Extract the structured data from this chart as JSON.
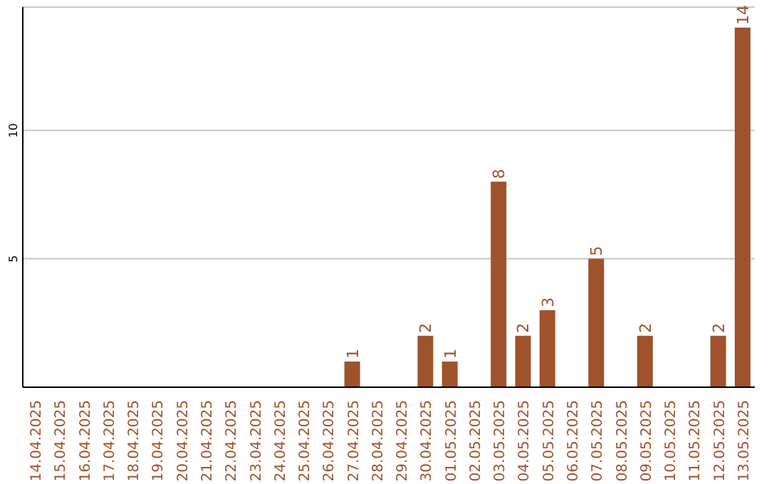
{
  "chart_data": {
    "type": "bar",
    "categories": [
      "14.04.2025",
      "15.04.2025",
      "16.04.2025",
      "17.04.2025",
      "18.04.2025",
      "19.04.2025",
      "20.04.2025",
      "21.04.2025",
      "22.04.2025",
      "23.04.2025",
      "24.04.2025",
      "25.04.2025",
      "26.04.2025",
      "27.04.2025",
      "28.04.2025",
      "29.04.2025",
      "30.04.2025",
      "01.05.2025",
      "02.05.2025",
      "03.05.2025",
      "04.05.2025",
      "05.05.2025",
      "06.05.2025",
      "07.05.2025",
      "08.05.2025",
      "09.05.2025",
      "10.05.2025",
      "11.05.2025",
      "12.05.2025",
      "13.05.2025"
    ],
    "values": [
      0,
      0,
      0,
      0,
      0,
      0,
      0,
      0,
      0,
      0,
      0,
      0,
      0,
      1,
      0,
      0,
      2,
      1,
      0,
      8,
      2,
      3,
      0,
      5,
      0,
      2,
      0,
      0,
      2,
      14
    ],
    "value_labels": [
      null,
      null,
      null,
      null,
      null,
      null,
      null,
      null,
      null,
      null,
      null,
      null,
      null,
      "1",
      null,
      null,
      "2",
      "1",
      null,
      "8",
      "2",
      "3",
      null,
      "5",
      null,
      "2",
      null,
      null,
      "2",
      "14"
    ],
    "color": "#a0522d",
    "ylim": [
      0,
      14.8
    ],
    "yticks": [
      5,
      10
    ],
    "grid": "y"
  }
}
